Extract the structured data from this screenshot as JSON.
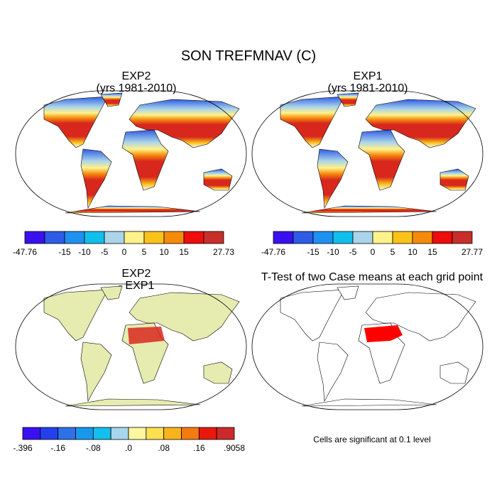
{
  "title": "SON TREFMNAV (C)",
  "panels": [
    {
      "title": [
        "EXP2",
        "(yrs 1981-2010)"
      ],
      "colorbar": {
        "colors": [
          "#3a10f0",
          "#2f5be6",
          "#1e90f0",
          "#10bfec",
          "#a9d4ea",
          "#fff28a",
          "#fbc21a",
          "#f58a0c",
          "#ee0c0c",
          "#c82f2a"
        ],
        "labels": [
          "-47.76",
          null,
          "-15",
          "-10",
          "-5",
          "0",
          "5",
          "10",
          "15",
          null,
          "27.73"
        ]
      }
    },
    {
      "title": [
        "EXP1",
        "(yrs 1981-2010)"
      ],
      "colorbar": {
        "colors": [
          "#3a10f0",
          "#2f5be6",
          "#1e90f0",
          "#10bfec",
          "#a9d4ea",
          "#fff28a",
          "#fbc21a",
          "#f58a0c",
          "#ee0c0c",
          "#c82f2a"
        ],
        "labels": [
          "-47.76",
          null,
          "-15",
          "-10",
          "-5",
          "0",
          "5",
          "10",
          "15",
          null,
          "27.77"
        ]
      }
    },
    {
      "title": [
        "EXP2",
        "- EXP1"
      ],
      "colorbar": {
        "colors": [
          "#3a10f0",
          "#2440ee",
          "#2e70e6",
          "#1898ec",
          "#12bfee",
          "#a7d6ec",
          "#fff7a0",
          "#ffe050",
          "#f8b41a",
          "#f57a10",
          "#e8180c",
          "#cc2a2a"
        ],
        "labels": [
          "-.396",
          null,
          "-.16",
          null,
          "-.08",
          null,
          ".0",
          null,
          ".08",
          null,
          ".16",
          null,
          ".9058"
        ]
      }
    },
    {
      "title": [
        "T-Test of two Case means at each grid point"
      ],
      "note": "Cells are significant at 0.1 level"
    }
  ]
}
